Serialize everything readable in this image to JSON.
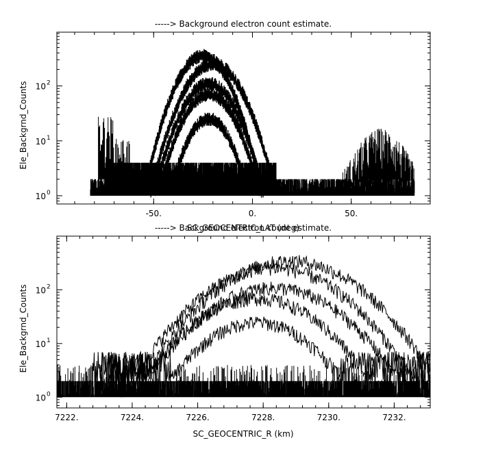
{
  "chart_data": [
    {
      "type": "scatter",
      "title": "-----> Background electron count estimate.",
      "xlabel": "SC_GEOCENTRIC_LAT (deg)",
      "ylabel": "Ele_Backgrnd_Counts",
      "xlim": [
        -99,
        90
      ],
      "ylim_log10": [
        -0.15,
        2.98
      ],
      "yscale": "log",
      "x_ticks": [
        -50,
        0,
        50
      ],
      "x_tick_labels": [
        "-50.",
        "0.",
        "50."
      ],
      "y_ticks": [
        1,
        10,
        100
      ],
      "y_tick_labels": [
        "10",
        "10",
        "10"
      ],
      "y_tick_exponents": [
        "0",
        "1",
        "2"
      ],
      "grid": false,
      "color": "#000000",
      "series": [
        {
          "x_range": [
            -82,
            82
          ],
          "baseline_counts": [
            1,
            4
          ],
          "description_values": true
        },
        {
          "peak_x": -25,
          "peak_counts": 350,
          "width_deg": 30
        },
        {
          "peak_x": -20,
          "peak_counts": 250,
          "width_deg": 32
        },
        {
          "peak_x": -22,
          "peak_counts": 110,
          "width_deg": 28
        },
        {
          "peak_x": -22,
          "peak_counts": 70,
          "width_deg": 26
        },
        {
          "peak_x": -22,
          "peak_counts": 25,
          "width_deg": 20
        },
        {
          "x_range": [
            45,
            82
          ],
          "peak_counts": 10
        }
      ]
    },
    {
      "type": "scatter",
      "title": "-----> Background electron count estimate.",
      "xlabel": "SC_GEOCENTRIC_R (km)",
      "ylabel": "Ele_Backgrnd_Counts",
      "xlim": [
        7221.7,
        7233.1
      ],
      "ylim_log10": [
        -0.2,
        3.0
      ],
      "yscale": "log",
      "x_ticks": [
        7222,
        7224,
        7226,
        7228,
        7230,
        7232
      ],
      "x_tick_labels": [
        "7222.",
        "7224.",
        "7226.",
        "7228.",
        "7230.",
        "7232."
      ],
      "y_ticks": [
        1,
        10,
        100
      ],
      "y_tick_labels": [
        "10",
        "10",
        "10"
      ],
      "y_tick_exponents": [
        "0",
        "1",
        "2"
      ],
      "grid": false,
      "color": "#000000",
      "series": [
        {
          "peak_x": 7228.8,
          "peak_counts": 350,
          "half_width_km": 4.8
        },
        {
          "peak_x": 7228.3,
          "peak_counts": 260,
          "half_width_km": 4.6
        },
        {
          "peak_x": 7228.3,
          "peak_counts": 110,
          "half_width_km": 4.2
        },
        {
          "peak_x": 7227.8,
          "peak_counts": 70,
          "half_width_km": 3.8
        },
        {
          "peak_x": 7227.8,
          "peak_counts": 25,
          "half_width_km": 3.0
        },
        {
          "x_range": [
            7221.7,
            7233.1
          ],
          "baseline_counts": [
            1,
            4
          ]
        }
      ]
    }
  ]
}
